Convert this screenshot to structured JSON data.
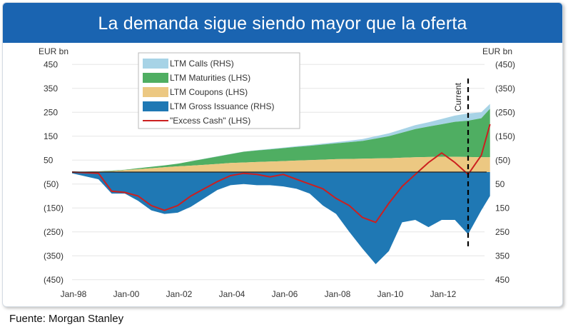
{
  "header": {
    "title": "La demanda sigue siendo mayor que la oferta"
  },
  "footer": {
    "source": "Fuente: Morgan Stanley"
  },
  "chart_data": {
    "type": "area",
    "title": "La demanda sigue siendo mayor que la oferta",
    "x_tick_labels": [
      "Jan-98",
      "Jan-00",
      "Jan-02",
      "Jan-04",
      "Jan-06",
      "Jan-08",
      "Jan-10",
      "Jan-12"
    ],
    "left_axis": {
      "label": "EUR bn",
      "range": [
        -450,
        450
      ],
      "ticks": [
        450,
        350,
        250,
        150,
        50,
        -50,
        -150,
        -250,
        -350,
        -450
      ],
      "tick_labels": [
        "450",
        "350",
        "250",
        "150",
        "50",
        "(50)",
        "(150)",
        "(250)",
        "(350)",
        "(450)"
      ]
    },
    "right_axis": {
      "label": "EUR bn",
      "inverted": true,
      "range": [
        -450,
        450
      ],
      "ticks": [
        -450,
        -350,
        -250,
        -150,
        -50,
        50,
        150,
        250,
        350,
        450
      ],
      "tick_labels": [
        "(450)",
        "(350)",
        "(250)",
        "(150)",
        "(50)",
        "50",
        "150",
        "250",
        "350",
        "450"
      ]
    },
    "annotation": {
      "label": "Current",
      "x": 2013.0
    },
    "legend": {
      "placement": "top-left",
      "entries": [
        {
          "label": "LTM Calls (RHS)",
          "color": "#a7d3e6"
        },
        {
          "label": "LTM Maturities (LHS)",
          "color": "#4fae62"
        },
        {
          "label": "LTM Coupons (LHS)",
          "color": "#ecc882"
        },
        {
          "label": "LTM Gross Issuance (RHS)",
          "color": "#1f78b4"
        },
        {
          "label": "\"Excess Cash\" (LHS)",
          "color": "#cc1f1f"
        }
      ]
    },
    "x": [
      1998.0,
      1999.0,
      1999.5,
      2000.0,
      2000.5,
      2001.0,
      2001.5,
      2002.0,
      2002.5,
      2003.0,
      2003.5,
      2004.0,
      2004.5,
      2005.0,
      2005.5,
      2006.0,
      2006.5,
      2007.0,
      2007.5,
      2008.0,
      2008.5,
      2009.0,
      2009.5,
      2010.0,
      2010.5,
      2011.0,
      2011.5,
      2012.0,
      2012.5,
      2013.0,
      2013.5,
      2013.83
    ],
    "series": [
      {
        "name": "LTM Coupons",
        "axis": "left",
        "values": [
          0,
          2,
          4,
          8,
          12,
          16,
          20,
          24,
          27,
          30,
          34,
          38,
          40,
          42,
          44,
          46,
          48,
          50,
          52,
          54,
          55,
          56,
          57,
          58,
          60,
          62,
          63,
          64,
          64,
          63,
          62,
          62
        ]
      },
      {
        "name": "LTM Maturities",
        "axis": "left",
        "values": [
          0,
          3,
          6,
          10,
          16,
          22,
          28,
          35,
          45,
          55,
          65,
          75,
          85,
          90,
          95,
          100,
          105,
          110,
          115,
          120,
          125,
          130,
          140,
          150,
          165,
          180,
          190,
          200,
          210,
          215,
          225,
          265
        ]
      },
      {
        "name": "LTM Calls",
        "axis": "right",
        "values": [
          0,
          0,
          0,
          0,
          0,
          0,
          0,
          0,
          0,
          1,
          1,
          1,
          1,
          2,
          2,
          2,
          3,
          3,
          4,
          5,
          6,
          8,
          10,
          12,
          14,
          16,
          18,
          22,
          26,
          30,
          25,
          20
        ]
      },
      {
        "name": "LTM Gross Issuance",
        "axis": "right",
        "values": [
          5,
          30,
          90,
          90,
          120,
          160,
          175,
          170,
          145,
          110,
          75,
          55,
          50,
          55,
          55,
          60,
          70,
          90,
          140,
          175,
          250,
          320,
          385,
          330,
          210,
          200,
          230,
          200,
          200,
          260,
          160,
          100
        ]
      },
      {
        "name": "\"Excess Cash\"",
        "axis": "left",
        "values": [
          0,
          -5,
          -80,
          -85,
          -100,
          -140,
          -160,
          -140,
          -100,
          -70,
          -40,
          -15,
          -5,
          -10,
          -20,
          -10,
          -30,
          -50,
          -70,
          -110,
          -140,
          -190,
          -210,
          -130,
          -60,
          -10,
          40,
          80,
          40,
          -10,
          70,
          200
        ]
      }
    ]
  }
}
